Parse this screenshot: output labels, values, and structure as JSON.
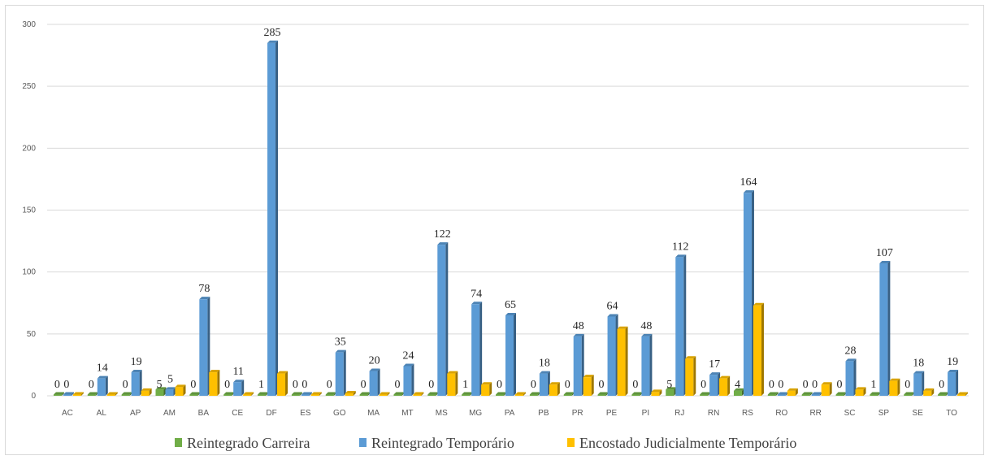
{
  "chart_data": {
    "type": "bar",
    "categories": [
      "AC",
      "AL",
      "AP",
      "AM",
      "BA",
      "CE",
      "DF",
      "ES",
      "GO",
      "MA",
      "MT",
      "MS",
      "MG",
      "PA",
      "PB",
      "PR",
      "PE",
      "PI",
      "RJ",
      "RN",
      "RS",
      "RO",
      "RR",
      "SC",
      "SP",
      "SE",
      "TO"
    ],
    "series": [
      {
        "name": "Reintegrado Carreira",
        "color": "#70ad47",
        "values": [
          0,
          0,
          0,
          5,
          0,
          0,
          1,
          0,
          0,
          0,
          0,
          0,
          1,
          0,
          0,
          0,
          0,
          0,
          5,
          0,
          4,
          0,
          0,
          0,
          1,
          0,
          0
        ]
      },
      {
        "name": "Reintegrado Temporário",
        "color": "#5b9bd5",
        "values": [
          0,
          14,
          19,
          5,
          78,
          11,
          285,
          0,
          35,
          20,
          24,
          122,
          74,
          65,
          18,
          48,
          64,
          48,
          112,
          17,
          164,
          0,
          0,
          28,
          107,
          18,
          19
        ]
      },
      {
        "name": "Encostado Judicialmente Temporário",
        "color": "#ffc000",
        "values": [
          0,
          1,
          4,
          7,
          19,
          1,
          18,
          0,
          2,
          0,
          1,
          18,
          9,
          1,
          9,
          15,
          54,
          3,
          30,
          14,
          73,
          4,
          9,
          5,
          12,
          4,
          0
        ]
      }
    ],
    "data_labels": {
      "Reintegrado Carreira": [
        "0",
        "0",
        "0",
        "5",
        "0",
        "0",
        "1",
        "0",
        "0",
        "0",
        "0",
        "0",
        "1",
        "0",
        "0",
        "0",
        "0",
        "0",
        "5",
        "0",
        "4",
        "0",
        "0",
        "0",
        "1",
        "0",
        "0"
      ],
      "Reintegrado Temporário": [
        "0",
        "14",
        "19",
        "5",
        "78",
        "11",
        "285",
        "0",
        "35",
        "20",
        "24",
        "122",
        "74",
        "65",
        "18",
        "48",
        "64",
        "48",
        "112",
        "17",
        "164",
        "0",
        "0",
        "28",
        "107",
        "18",
        "19"
      ]
    },
    "y_ticks": [
      "0",
      "50",
      "100",
      "150",
      "200",
      "250",
      "300"
    ],
    "ylim": [
      0,
      300
    ],
    "grid": true,
    "legend_position": "bottom",
    "title": "",
    "xlabel": "",
    "ylabel": ""
  }
}
